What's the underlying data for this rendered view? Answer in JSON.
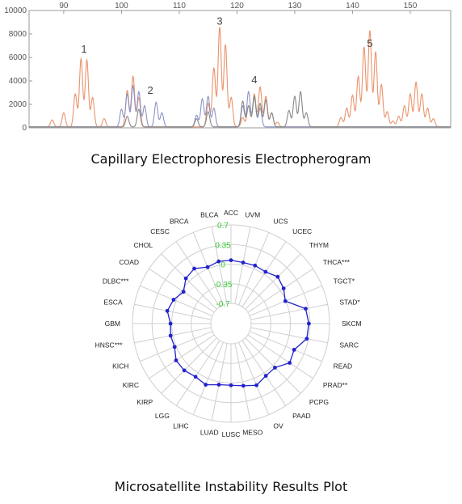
{
  "captions": {
    "electropherogram": "Capillary Electrophoresis Electropherogram",
    "msi": "Microsatellite Instability Results Plot"
  },
  "chart_data": [
    {
      "type": "line",
      "title": "",
      "xlim": [
        84,
        157
      ],
      "ylim": [
        0,
        10000
      ],
      "x_ticks": [
        "90",
        "100",
        "110",
        "120",
        "130",
        "140",
        "150"
      ],
      "y_ticks": [
        "0",
        "2000",
        "4000",
        "6000",
        "8000",
        "10000"
      ],
      "grid": false,
      "series": [
        {
          "color": "#e9936b",
          "peaks": [
            [
              88,
              600
            ],
            [
              90,
              1200
            ],
            [
              92,
              2800
            ],
            [
              93,
              5800
            ],
            [
              94,
              5700
            ],
            [
              95,
              2500
            ],
            [
              97,
              700
            ],
            [
              101,
              3100
            ],
            [
              102,
              4300
            ],
            [
              103,
              2500
            ],
            [
              115,
              2000
            ],
            [
              116,
              5000
            ],
            [
              117,
              8500
            ],
            [
              118,
              7000
            ],
            [
              119,
              2500
            ],
            [
              121,
              800
            ],
            [
              122,
              1800
            ],
            [
              123,
              2800
            ],
            [
              124,
              3400
            ],
            [
              125,
              2600
            ],
            [
              126,
              1200
            ],
            [
              127,
              400
            ],
            [
              138,
              800
            ],
            [
              139,
              1600
            ],
            [
              140,
              2700
            ],
            [
              141,
              4300
            ],
            [
              142,
              6800
            ],
            [
              143,
              8200
            ],
            [
              144,
              6400
            ],
            [
              145,
              3600
            ],
            [
              146,
              1300
            ],
            [
              147,
              500
            ],
            [
              148,
              900
            ],
            [
              149,
              1800
            ],
            [
              150,
              2800
            ],
            [
              151,
              3800
            ],
            [
              152,
              2800
            ],
            [
              153,
              1600
            ],
            [
              154,
              700
            ]
          ]
        },
        {
          "color": "#8b93c7",
          "peaks": [
            [
              100,
              1500
            ],
            [
              101,
              2800
            ],
            [
              102,
              3500
            ],
            [
              103,
              3000
            ],
            [
              104,
              1800
            ],
            [
              106,
              2100
            ],
            [
              107,
              1200
            ],
            [
              113,
              1000
            ],
            [
              114,
              2400
            ],
            [
              115,
              2600
            ],
            [
              116,
              1600
            ],
            [
              121,
              1800
            ],
            [
              122,
              3000
            ],
            [
              123,
              2500
            ],
            [
              124,
              1600
            ]
          ]
        },
        {
          "color": "#888888",
          "peaks": [
            [
              101,
              900
            ],
            [
              103,
              1500
            ],
            [
              113,
              700
            ],
            [
              115,
              1300
            ],
            [
              121,
              2200
            ],
            [
              122,
              1800
            ],
            [
              123,
              2600
            ],
            [
              124,
              2000
            ],
            [
              125,
              2300
            ],
            [
              126,
              1200
            ],
            [
              129,
              1400
            ],
            [
              130,
              2600
            ],
            [
              131,
              3000
            ],
            [
              132,
              1200
            ]
          ]
        }
      ],
      "annotations": [
        {
          "text": "1",
          "x": 93.5,
          "y": 6400
        },
        {
          "text": "2",
          "x": 105,
          "y": 2900
        },
        {
          "text": "3",
          "x": 117,
          "y": 8800
        },
        {
          "text": "4",
          "x": 123,
          "y": 3800
        },
        {
          "text": "5",
          "x": 143,
          "y": 6900
        }
      ]
    },
    {
      "type": "radar",
      "title": "",
      "rlim": [
        -0.7,
        0.7
      ],
      "r_ticks": [
        "0.7",
        "0.35",
        "0",
        "-0.35",
        "-0.7"
      ],
      "tick_color": "#33cc33",
      "series_color": "#2222cc",
      "categories": [
        "ACC",
        "UVM",
        "UCS",
        "UCEC",
        "THYM",
        "THCA***",
        "TGCT*",
        "STAD*",
        "SKCM",
        "SARC",
        "READ",
        "PRAD**",
        "PCPG",
        "PAAD",
        "OV",
        "MESO",
        "LUSC",
        "LUAD",
        "LIHC",
        "LGG",
        "KIRP",
        "KIRC",
        "KICH",
        "HNSC***",
        "GBM",
        "ESCA",
        "DLBC***",
        "COAD",
        "CHOL",
        "CESC",
        "BRCA",
        "BLCA"
      ],
      "values": [
        0.07,
        0.05,
        0.06,
        0.05,
        0.12,
        0.07,
        -0.01,
        0.3,
        0.33,
        0.32,
        0.16,
        0.2,
        0.05,
        0.06,
        0.13,
        0.07,
        0.04,
        0.05,
        0.12,
        0.08,
        0.12,
        0.12,
        0.03,
        0.04,
        0.02,
        0.1,
        0.05,
        -0.04,
        0.08,
        0.12,
        0.03,
        0.07
      ]
    }
  ]
}
